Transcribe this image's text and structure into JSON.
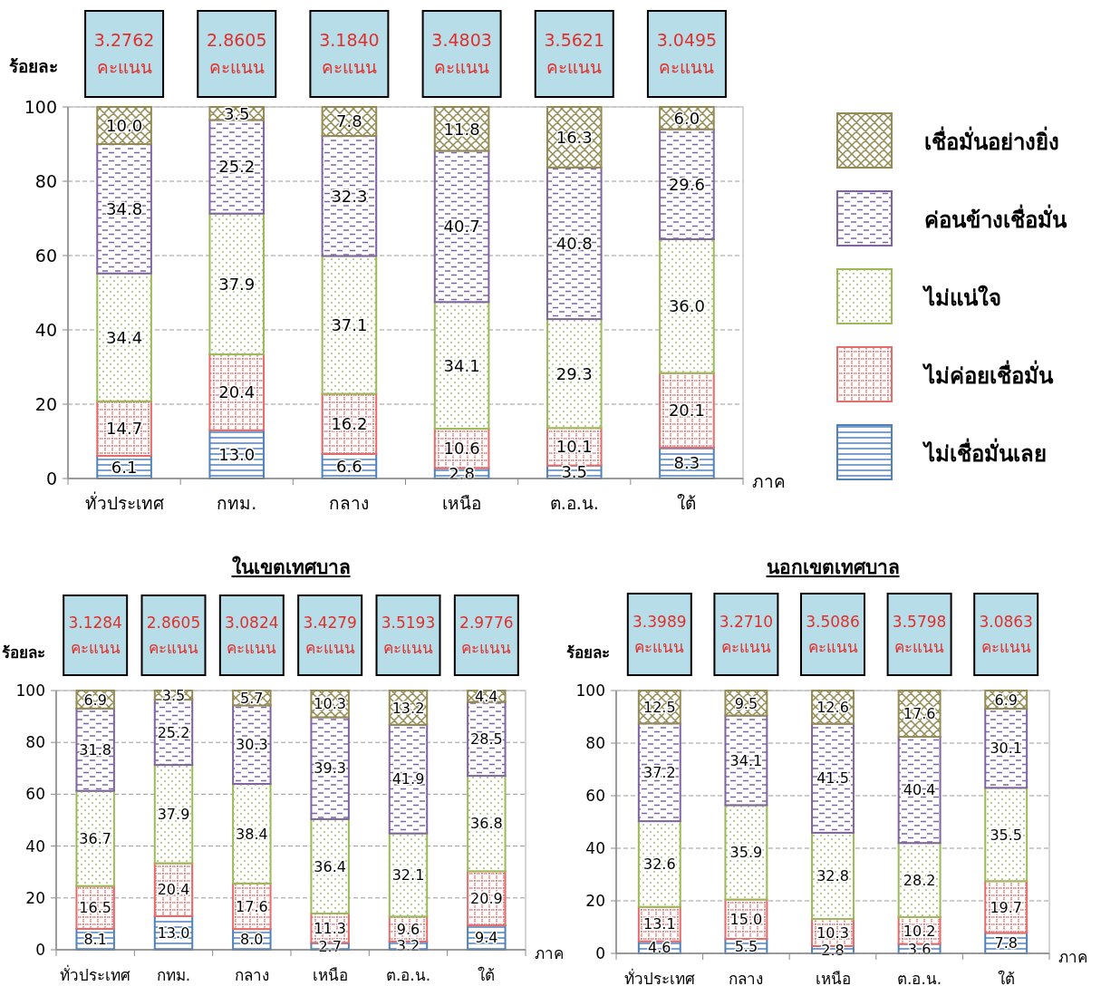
{
  "chart_data": [
    {
      "type": "bar",
      "stacked": true,
      "ylabel": "ร้อยละ",
      "xlabel": "ภาค",
      "categories": [
        "ทั่วประเทศ",
        "กทม.",
        "กลาง",
        "เหนือ",
        "ต.อ.น.",
        "ใต้"
      ],
      "ylim": [
        0,
        100
      ],
      "yticks": [
        0,
        20,
        40,
        60,
        80,
        100
      ],
      "grid": "y",
      "legend": "right",
      "annotations": [
        "3.2762\nคะแนน",
        "2.8605\nคะแนน",
        "3.1840\nคะแนน",
        "3.4803\nคะแนน",
        "3.5621\nคะแนน",
        "3.0495\nคะแนน"
      ],
      "series": [
        {
          "name": "ไม่เชื่อมั่นเลย",
          "color": "#4f81bd",
          "values": [
            6.1,
            13.0,
            6.6,
            2.8,
            3.5,
            8.3
          ],
          "value_labels": [
            "6.1",
            "13.0",
            "6.6",
            "2.8",
            "3.5",
            "8.3"
          ]
        },
        {
          "name": "ไม่ค่อยเชื่อมั่น",
          "color": "#e46c6a",
          "values": [
            14.7,
            20.4,
            16.2,
            10.6,
            10.1,
            20.1
          ],
          "value_labels": [
            "14.7",
            "20.4",
            "16.2",
            "10.6",
            "10.1",
            "20.1"
          ]
        },
        {
          "name": "ไม่แน่ใจ",
          "color": "#9bbb59",
          "values": [
            34.4,
            37.9,
            37.1,
            34.1,
            29.3,
            36.0
          ],
          "value_labels": [
            "34.4",
            "37.9",
            "37.1",
            "34.1",
            "29.3",
            "36.0"
          ]
        },
        {
          "name": "ค่อนข้างเชื่อมั่น",
          "color": "#8064a2",
          "values": [
            34.8,
            25.2,
            32.3,
            40.7,
            40.8,
            29.6
          ],
          "value_labels": [
            "34.8",
            "25.2",
            "32.3",
            "40.7",
            "40.8",
            "29.6"
          ]
        },
        {
          "name": "เชื่อมั่นอย่างยิ่ง",
          "color": "#948a54",
          "values": [
            10.0,
            3.5,
            7.8,
            11.8,
            16.3,
            6.0
          ],
          "value_labels": [
            "10.0",
            "3.5",
            "7.8",
            "11.8",
            "16.3",
            "6.0"
          ]
        }
      ]
    },
    {
      "type": "bar",
      "stacked": true,
      "title": "ในเขตเทศบาล",
      "ylabel": "ร้อยละ",
      "xlabel": "ภาค",
      "categories": [
        "ทั่วประเทศ",
        "กทม.",
        "กลาง",
        "เหนือ",
        "ต.อ.น.",
        "ใต้"
      ],
      "ylim": [
        0,
        100
      ],
      "yticks": [
        0,
        20,
        40,
        60,
        80,
        100
      ],
      "grid": "y",
      "annotations": [
        "3.1284\nคะแนน",
        "2.8605\nคะแนน",
        "3.0824\nคะแนน",
        "3.4279\nคะแนน",
        "3.5193\nคะแนน",
        "2.9776\nคะแนน"
      ],
      "series": [
        {
          "color": "#4f81bd",
          "values": [
            8.1,
            13.0,
            8.0,
            2.7,
            3.2,
            9.4
          ],
          "value_labels": [
            "8.1",
            "13.0",
            "8.0",
            "2.7",
            "3.2",
            "9.4"
          ]
        },
        {
          "color": "#e46c6a",
          "values": [
            16.5,
            20.4,
            17.6,
            11.3,
            9.6,
            20.9
          ],
          "value_labels": [
            "16.5",
            "20.4",
            "17.6",
            "11.3",
            "9.6",
            "20.9"
          ]
        },
        {
          "color": "#9bbb59",
          "values": [
            36.7,
            37.9,
            38.4,
            36.4,
            32.1,
            36.8
          ],
          "value_labels": [
            "36.7",
            "37.9",
            "38.4",
            "36.4",
            "32.1",
            "36.8"
          ]
        },
        {
          "color": "#8064a2",
          "values": [
            31.8,
            25.2,
            30.3,
            39.3,
            41.9,
            28.5
          ],
          "value_labels": [
            "31.8",
            "25.2",
            "30.3",
            "39.3",
            "41.9",
            "28.5"
          ]
        },
        {
          "color": "#948a54",
          "values": [
            6.9,
            3.5,
            5.7,
            10.3,
            13.2,
            4.4
          ],
          "value_labels": [
            "6.9",
            "3.5",
            "5.7",
            "10.3",
            "13.2",
            "4.4"
          ]
        }
      ]
    },
    {
      "type": "bar",
      "stacked": true,
      "title": "นอกเขตเทศบาล",
      "ylabel": "ร้อยละ",
      "xlabel": "ภาค",
      "categories": [
        "ทั่วประเทศ",
        "กลาง",
        "เหนือ",
        "ต.อ.น.",
        "ใต้"
      ],
      "ylim": [
        0,
        100
      ],
      "yticks": [
        0,
        20,
        40,
        60,
        80,
        100
      ],
      "grid": "y",
      "annotations": [
        "3.3989\nคะแนน",
        "3.2710\nคะแนน",
        "3.5086\nคะแนน",
        "3.5798\nคะแนน",
        "3.0863\nคะแนน"
      ],
      "series": [
        {
          "color": "#4f81bd",
          "values": [
            4.6,
            5.5,
            2.8,
            3.6,
            7.8
          ],
          "value_labels": [
            "4.6",
            "5.5",
            "2.8",
            "3.6",
            "7.8"
          ]
        },
        {
          "color": "#e46c6a",
          "values": [
            13.1,
            15.0,
            10.3,
            10.2,
            19.7
          ],
          "value_labels": [
            "13.1",
            "15.0",
            "10.3",
            "10.2",
            "19.7"
          ]
        },
        {
          "color": "#9bbb59",
          "values": [
            32.6,
            35.9,
            32.8,
            28.2,
            35.5
          ],
          "value_labels": [
            "32.6",
            "35.9",
            "32.8",
            "28.2",
            "35.5"
          ]
        },
        {
          "color": "#8064a2",
          "values": [
            37.2,
            34.1,
            41.5,
            40.4,
            30.1
          ],
          "value_labels": [
            "37.2",
            "34.1",
            "41.5",
            "40.4",
            "30.1"
          ]
        },
        {
          "color": "#948a54",
          "values": [
            12.5,
            9.5,
            12.6,
            17.6,
            6.9
          ],
          "value_labels": [
            "12.5",
            "9.5",
            "12.6",
            "17.6",
            "6.9"
          ]
        }
      ]
    }
  ]
}
